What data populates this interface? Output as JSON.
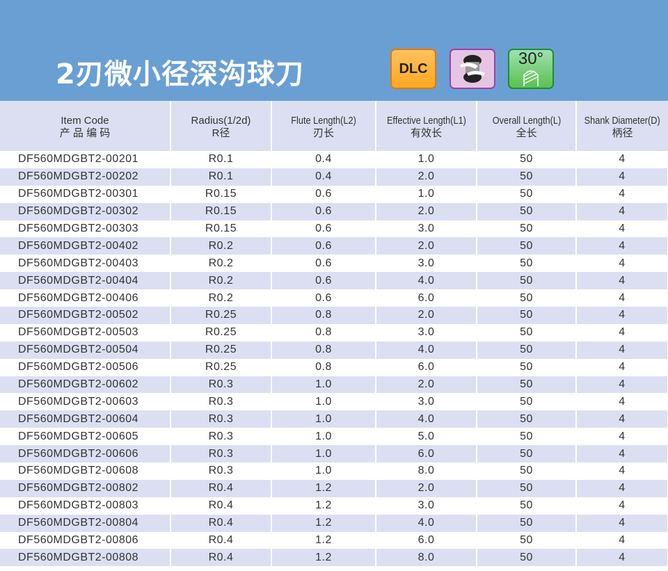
{
  "header": {
    "title": "2刃微小径深沟球刀",
    "badges": [
      {
        "label": "DLC",
        "icon": "dlc-coating-badge",
        "color": "#ffb030"
      },
      {
        "label": "",
        "icon": "two-flute-ball-icon",
        "color": "#e6c4e4"
      },
      {
        "label": "30°",
        "icon": "helix-angle-icon",
        "color": "#6ccc68"
      }
    ]
  },
  "columns": [
    {
      "en": "Item Code",
      "zh": "产 品 编 码"
    },
    {
      "en": "Radius(1/2d)",
      "zh": "R径"
    },
    {
      "en": "Flute Length(L2)",
      "zh": "刃长"
    },
    {
      "en": "Effective Length(L1)",
      "zh": "有效长"
    },
    {
      "en": "Overall Length(L)",
      "zh": "全长"
    },
    {
      "en": "Shank Diameter(D)",
      "zh": "柄径"
    }
  ],
  "rows": [
    [
      "DF560MDGBT2-00201",
      "R0.1",
      "0.4",
      "1.0",
      "50",
      "4"
    ],
    [
      "DF560MDGBT2-00202",
      "R0.1",
      "0.4",
      "2.0",
      "50",
      "4"
    ],
    [
      "DF560MDGBT2-00301",
      "R0.15",
      "0.6",
      "1.0",
      "50",
      "4"
    ],
    [
      "DF560MDGBT2-00302",
      "R0.15",
      "0.6",
      "2.0",
      "50",
      "4"
    ],
    [
      "DF560MDGBT2-00303",
      "R0.15",
      "0.6",
      "3.0",
      "50",
      "4"
    ],
    [
      "DF560MDGBT2-00402",
      "R0.2",
      "0.6",
      "2.0",
      "50",
      "4"
    ],
    [
      "DF560MDGBT2-00403",
      "R0.2",
      "0.6",
      "3.0",
      "50",
      "4"
    ],
    [
      "DF560MDGBT2-00404",
      "R0.2",
      "0.6",
      "4.0",
      "50",
      "4"
    ],
    [
      "DF560MDGBT2-00406",
      "R0.2",
      "0.6",
      "6.0",
      "50",
      "4"
    ],
    [
      "DF560MDGBT2-00502",
      "R0.25",
      "0.8",
      "2.0",
      "50",
      "4"
    ],
    [
      "DF560MDGBT2-00503",
      "R0.25",
      "0.8",
      "3.0",
      "50",
      "4"
    ],
    [
      "DF560MDGBT2-00504",
      "R0.25",
      "0.8",
      "4.0",
      "50",
      "4"
    ],
    [
      "DF560MDGBT2-00506",
      "R0.25",
      "0.8",
      "6.0",
      "50",
      "4"
    ],
    [
      "DF560MDGBT2-00602",
      "R0.3",
      "1.0",
      "2.0",
      "50",
      "4"
    ],
    [
      "DF560MDGBT2-00603",
      "R0.3",
      "1.0",
      "3.0",
      "50",
      "4"
    ],
    [
      "DF560MDGBT2-00604",
      "R0.3",
      "1.0",
      "4.0",
      "50",
      "4"
    ],
    [
      "DF560MDGBT2-00605",
      "R0.3",
      "1.0",
      "5.0",
      "50",
      "4"
    ],
    [
      "DF560MDGBT2-00606",
      "R0.3",
      "1.0",
      "6.0",
      "50",
      "4"
    ],
    [
      "DF560MDGBT2-00608",
      "R0.3",
      "1.0",
      "8.0",
      "50",
      "4"
    ],
    [
      "DF560MDGBT2-00802",
      "R0.4",
      "1.2",
      "2.0",
      "50",
      "4"
    ],
    [
      "DF560MDGBT2-00803",
      "R0.4",
      "1.2",
      "3.0",
      "50",
      "4"
    ],
    [
      "DF560MDGBT2-00804",
      "R0.4",
      "1.2",
      "4.0",
      "50",
      "4"
    ],
    [
      "DF560MDGBT2-00806",
      "R0.4",
      "1.2",
      "6.0",
      "50",
      "4"
    ],
    [
      "DF560MDGBT2-00808",
      "R0.4",
      "1.2",
      "8.0",
      "50",
      "4"
    ]
  ]
}
